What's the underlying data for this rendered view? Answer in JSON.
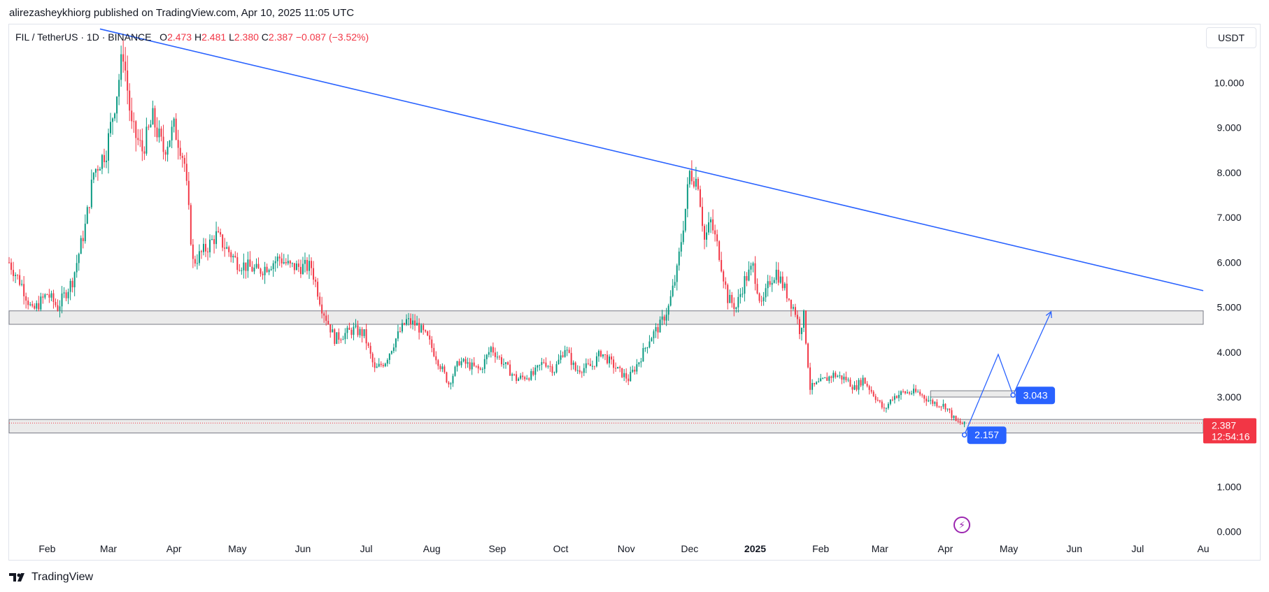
{
  "header": {
    "published_by": "alirezasheykhiorg published on TradingView.com, Apr 10, 2025 11:05 UTC"
  },
  "legend": {
    "symbol": "FIL / TetherUS · 1D · BINANCE",
    "open_label": "O",
    "open": "2.473",
    "high_label": "H",
    "high": "2.481",
    "low_label": "L",
    "low": "2.380",
    "close_label": "C",
    "close": "2.387",
    "change": "−0.087 (−3.52%)"
  },
  "toolbar": {
    "currency": "USDT"
  },
  "footer": {
    "brand": "TradingView"
  },
  "colors": {
    "up": "#089981",
    "down": "#f23645",
    "trendline": "#2962ff",
    "zone_fill": "#ebebeb",
    "zone_border": "#787b86",
    "badge": "#2962ff",
    "price_tag": "#f23645",
    "indicator": "#9c27b0"
  },
  "icons": {
    "indicator": "lightning-bolt-icon",
    "logo": "tradingview-logo-icon"
  },
  "chart_data": {
    "type": "candlestick",
    "ylim": [
      -0.3,
      11.3
    ],
    "y_ticks": [
      "10.000",
      "9.000",
      "8.000",
      "7.000",
      "6.000",
      "5.000",
      "4.000",
      "3.000",
      "1.000",
      "0.000"
    ],
    "y_tick_values": [
      10,
      9,
      8,
      7,
      6,
      5,
      4,
      3,
      1,
      0
    ],
    "x_labels": [
      "Feb",
      "Mar",
      "Apr",
      "May",
      "Jun",
      "Jul",
      "Aug",
      "Sep",
      "Oct",
      "Nov",
      "Dec",
      "2025",
      "Feb",
      "Mar",
      "Apr",
      "May",
      "Jun",
      "Jul",
      "Au"
    ],
    "x_label_days": [
      0,
      29,
      60,
      90,
      121,
      151,
      182,
      213,
      243,
      274,
      304,
      335,
      366,
      394,
      425,
      455,
      486,
      516,
      547
    ],
    "x_bold_label": "2025",
    "x_first_day": -18,
    "x_last_day": 547,
    "last_candle_day": 434,
    "anchors": [
      [
        -18,
        6.0
      ],
      [
        -12,
        5.5
      ],
      [
        -7,
        4.9
      ],
      [
        0,
        5.3
      ],
      [
        5,
        5.0
      ],
      [
        12,
        5.6
      ],
      [
        18,
        6.8
      ],
      [
        22,
        8.0
      ],
      [
        28,
        8.5
      ],
      [
        33,
        9.8
      ],
      [
        36,
        10.7
      ],
      [
        40,
        9.0
      ],
      [
        45,
        8.5
      ],
      [
        50,
        9.2
      ],
      [
        55,
        8.5
      ],
      [
        60,
        9.0
      ],
      [
        63,
        8.6
      ],
      [
        65,
        8.2
      ],
      [
        69,
        6.0
      ],
      [
        75,
        6.3
      ],
      [
        80,
        6.6
      ],
      [
        90,
        6.0
      ],
      [
        100,
        5.8
      ],
      [
        110,
        6.1
      ],
      [
        115,
        5.9
      ],
      [
        125,
        5.9
      ],
      [
        130,
        5.0
      ],
      [
        136,
        4.3
      ],
      [
        145,
        4.5
      ],
      [
        150,
        4.4
      ],
      [
        155,
        3.6
      ],
      [
        160,
        3.8
      ],
      [
        165,
        4.3
      ],
      [
        170,
        4.7
      ],
      [
        175,
        4.6
      ],
      [
        180,
        4.3
      ],
      [
        185,
        3.8
      ],
      [
        190,
        3.3
      ],
      [
        195,
        3.8
      ],
      [
        205,
        3.6
      ],
      [
        210,
        4.1
      ],
      [
        215,
        3.8
      ],
      [
        222,
        3.4
      ],
      [
        230,
        3.5
      ],
      [
        235,
        3.8
      ],
      [
        240,
        3.6
      ],
      [
        245,
        4.1
      ],
      [
        250,
        3.6
      ],
      [
        258,
        3.7
      ],
      [
        262,
        4.0
      ],
      [
        270,
        3.6
      ],
      [
        275,
        3.4
      ],
      [
        280,
        3.8
      ],
      [
        285,
        4.3
      ],
      [
        290,
        4.6
      ],
      [
        294,
        5.0
      ],
      [
        298,
        5.8
      ],
      [
        302,
        7.2
      ],
      [
        304,
        8.0
      ],
      [
        308,
        7.8
      ],
      [
        311,
        6.5
      ],
      [
        314,
        6.9
      ],
      [
        318,
        6.2
      ],
      [
        322,
        5.2
      ],
      [
        326,
        5.0
      ],
      [
        330,
        5.6
      ],
      [
        334,
        5.9
      ],
      [
        338,
        5.0
      ],
      [
        342,
        5.6
      ],
      [
        345,
        5.8
      ],
      [
        350,
        5.3
      ],
      [
        354,
        4.9
      ],
      [
        356,
        4.5
      ],
      [
        358,
        4.8
      ],
      [
        361,
        3.2
      ],
      [
        365,
        3.3
      ],
      [
        372,
        3.5
      ],
      [
        378,
        3.4
      ],
      [
        382,
        3.2
      ],
      [
        386,
        3.4
      ],
      [
        392,
        3.0
      ],
      [
        396,
        2.7
      ],
      [
        400,
        3.0
      ],
      [
        405,
        3.1
      ],
      [
        412,
        3.1
      ],
      [
        418,
        2.9
      ],
      [
        425,
        2.8
      ],
      [
        430,
        2.45
      ],
      [
        434,
        2.387
      ]
    ],
    "trendline": [
      [
        25,
        11.2
      ],
      [
        547,
        5.37
      ]
    ],
    "zones": [
      {
        "from_day": -18,
        "to_day": 547,
        "low": 4.62,
        "high": 4.92
      },
      {
        "from_day": -18,
        "to_day": 547,
        "low": 2.2,
        "high": 2.5
      },
      {
        "from_day": 418,
        "to_day": 461,
        "low": 3.0,
        "high": 3.14
      }
    ],
    "current_price_line": 2.42,
    "projection_path": [
      [
        434,
        2.157
      ],
      [
        450,
        3.95
      ],
      [
        457,
        3.043
      ],
      [
        475,
        4.9
      ]
    ],
    "price_badges": [
      {
        "label": "2.157",
        "day": 434,
        "value": 2.157
      },
      {
        "label": "3.043",
        "day": 457,
        "value": 3.043
      }
    ],
    "current_price": {
      "price": "2.387",
      "countdown": "12:54:16",
      "value": 2.387
    }
  }
}
